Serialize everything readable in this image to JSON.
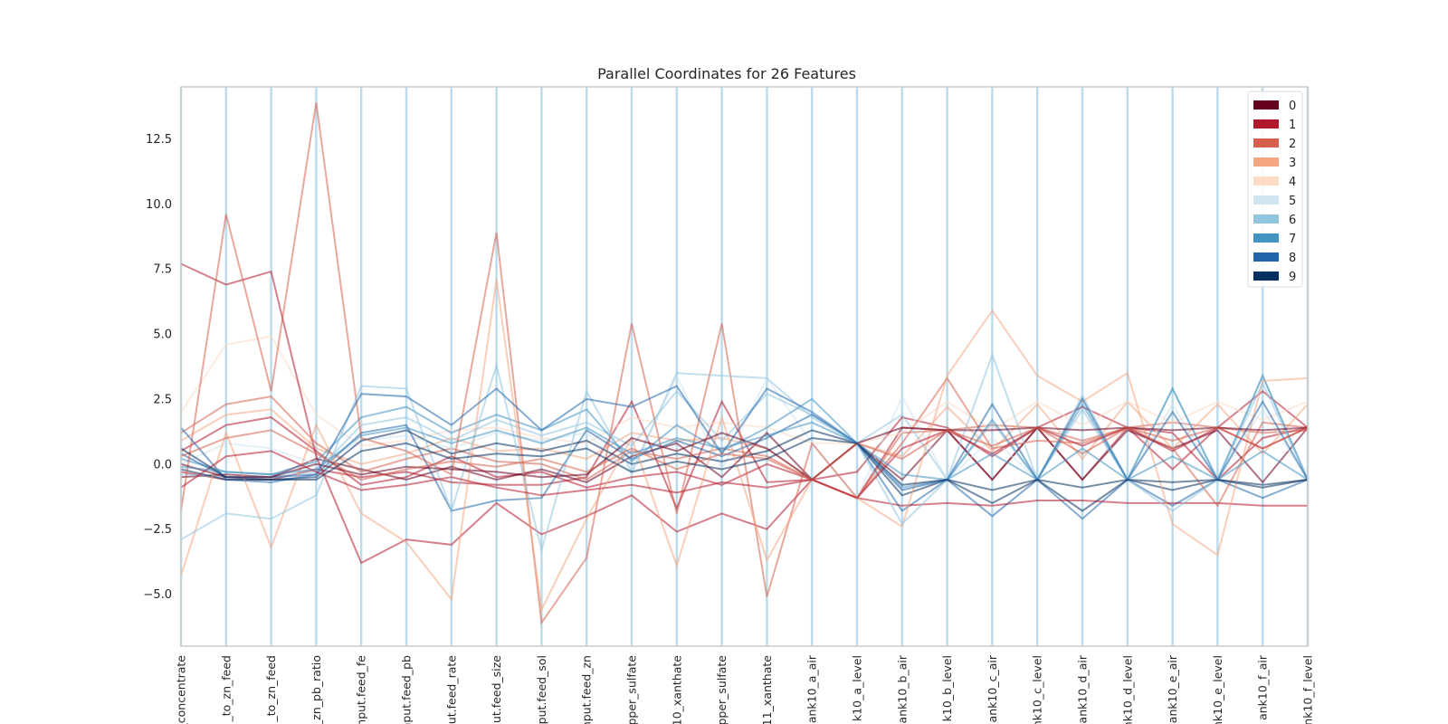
{
  "chart_data": {
    "type": "parallel-coordinates",
    "title": "Parallel Coordinates for 26 Features",
    "features": [
      "_concentrate",
      "_to_zn_feed",
      "_to_zn_feed",
      "_zn_pb_ratio",
      "nput.feed_fe",
      "nput.feed_pb",
      "ut.feed_rate",
      "ut.feed_size",
      "put.feed_sol",
      "nput.feed_zn",
      "pper_sulfate",
      "10_xanthate",
      "pper_sulfate",
      "11_xanthate",
      "ank10_a_air",
      "k10_a_level",
      "ank10_b_air",
      "k10_b_level",
      "ank10_c_air",
      "ank10_c_level",
      "ank10_d_air",
      "ank10_d_level",
      "ank10_e_air",
      "ank10_e_level",
      "ank10_f_air",
      "nk10_f_level"
    ],
    "ylim": [
      -7.0,
      14.5
    ],
    "yticks": [
      "−5.0",
      "−2.5",
      "0.0",
      "2.5",
      "5.0",
      "7.5",
      "10.0",
      "12.5"
    ],
    "ytick_values": [
      -5.0,
      -2.5,
      0.0,
      2.5,
      5.0,
      7.5,
      10.0,
      12.5
    ],
    "legend_position": "top-right",
    "classes": [
      {
        "label": "0",
        "color": "#67001f"
      },
      {
        "label": "1",
        "color": "#b2182b"
      },
      {
        "label": "2",
        "color": "#d6604d"
      },
      {
        "label": "3",
        "color": "#f4a582"
      },
      {
        "label": "4",
        "color": "#fddbc7"
      },
      {
        "label": "5",
        "color": "#d1e5f0"
      },
      {
        "label": "6",
        "color": "#92c5de"
      },
      {
        "label": "7",
        "color": "#4393c3"
      },
      {
        "label": "8",
        "color": "#2166ac"
      },
      {
        "label": "9",
        "color": "#053061"
      }
    ],
    "series": [
      {
        "class": 1,
        "values": [
          -0.3,
          -0.6,
          -0.6,
          -0.2,
          -0.5,
          -0.3,
          -0.7,
          -0.8,
          -0.8,
          -0.5,
          2.4,
          -1.7,
          2.4,
          -0.7,
          -0.6,
          -1.3,
          1.4,
          1.3,
          -0.6,
          1.4,
          -0.6,
          1.4,
          1.2,
          -0.6,
          1.0,
          1.4
        ]
      },
      {
        "class": 1,
        "values": [
          0.5,
          1.5,
          1.8,
          0.5,
          -0.8,
          -0.5,
          0.3,
          -0.5,
          -0.3,
          -0.9,
          -0.5,
          -0.3,
          -0.8,
          0.0,
          -0.6,
          -0.3,
          1.8,
          1.4,
          0.3,
          1.4,
          2.2,
          1.4,
          -0.2,
          1.4,
          2.8,
          1.4
        ]
      },
      {
        "class": 0,
        "values": [
          -0.5,
          -0.4,
          -0.5,
          0.2,
          -0.2,
          -0.6,
          -0.1,
          -0.6,
          -0.2,
          -0.7,
          0.3,
          0.8,
          -0.5,
          1.2,
          -0.6,
          0.8,
          -0.6,
          1.3,
          -0.6,
          1.4,
          -0.6,
          1.3,
          0.6,
          1.3,
          -0.7,
          1.4
        ]
      },
      {
        "class": 2,
        "values": [
          1.2,
          2.3,
          2.6,
          0.8,
          -0.3,
          0.2,
          0.6,
          0.1,
          0.0,
          -0.6,
          0.5,
          0.2,
          0.6,
          0.3,
          -0.6,
          -1.3,
          1.2,
          1.3,
          1.5,
          1.4,
          0.9,
          1.4,
          1.6,
          1.4,
          1.2,
          1.3
        ]
      },
      {
        "class": 3,
        "values": [
          0.9,
          1.9,
          2.1,
          0.6,
          0.0,
          0.4,
          1.0,
          0.5,
          0.6,
          0.2,
          1.2,
          0.9,
          1.0,
          0.6,
          -0.6,
          0.8,
          0.3,
          2.2,
          0.5,
          2.3,
          0.2,
          2.4,
          0.6,
          2.3,
          0.4,
          2.3
        ]
      },
      {
        "class": 4,
        "values": [
          2.0,
          4.6,
          4.9,
          1.9,
          0.7,
          0.9,
          1.3,
          1.4,
          1.0,
          0.8,
          1.8,
          1.4,
          1.6,
          1.4,
          0.8,
          0.8,
          1.2,
          2.4,
          1.3,
          2.4,
          1.5,
          2.4,
          1.6,
          2.4,
          1.7,
          2.4
        ]
      },
      {
        "class": 5,
        "values": [
          0.0,
          0.8,
          0.6,
          0.0,
          0.9,
          1.1,
          0.6,
          1.2,
          0.9,
          1.2,
          -0.4,
          3.4,
          -0.2,
          3.3,
          0.8,
          -1.3,
          2.6,
          -0.6,
          1.0,
          -0.6,
          2.7,
          -0.6,
          2.3,
          -0.6,
          2.1,
          -0.6
        ]
      },
      {
        "class": 6,
        "values": [
          -0.4,
          -0.5,
          -0.5,
          -0.3,
          1.5,
          1.8,
          0.9,
          1.7,
          1.1,
          1.6,
          0.7,
          2.8,
          0.9,
          2.7,
          1.9,
          0.8,
          1.9,
          -0.6,
          1.6,
          -0.6,
          2.1,
          -0.6,
          2.9,
          -0.6,
          3.4,
          -0.6
        ]
      },
      {
        "class": 7,
        "values": [
          0.2,
          -0.3,
          -0.4,
          0.1,
          1.8,
          2.2,
          1.2,
          1.9,
          1.3,
          2.1,
          0.1,
          1.5,
          0.5,
          1.4,
          2.5,
          0.8,
          -0.9,
          -0.6,
          1.7,
          -0.6,
          2.3,
          -0.6,
          2.9,
          -0.6,
          3.4,
          -0.6
        ]
      },
      {
        "class": 8,
        "values": [
          0.4,
          -0.5,
          -0.5,
          -0.4,
          1.2,
          1.5,
          -1.8,
          -1.4,
          -1.3,
          1.3,
          0.2,
          0.9,
          0.3,
          1.0,
          1.9,
          0.8,
          -1.8,
          -0.6,
          -2.0,
          -0.6,
          -2.1,
          -0.6,
          -1.6,
          -0.6,
          -1.3,
          -0.6
        ]
      },
      {
        "class": 9,
        "values": [
          -0.2,
          -0.6,
          -0.6,
          -0.5,
          0.9,
          1.3,
          0.4,
          0.8,
          0.5,
          0.9,
          0.0,
          0.4,
          0.1,
          0.5,
          1.3,
          0.8,
          -1.2,
          -0.6,
          -1.5,
          -0.6,
          -1.8,
          -0.6,
          -1.0,
          -0.6,
          -0.8,
          -0.6
        ]
      },
      {
        "class": 1,
        "values": [
          7.7,
          6.9,
          7.4,
          0.3,
          -3.8,
          -2.9,
          -3.1,
          -1.5,
          -2.7,
          -2.0,
          -1.2,
          -2.6,
          -1.9,
          -2.5,
          -0.6,
          -1.3,
          -1.6,
          -1.5,
          -1.6,
          -1.4,
          -1.4,
          -1.5,
          -1.5,
          -1.5,
          -1.6,
          -1.6
        ]
      },
      {
        "class": 2,
        "values": [
          -1.8,
          9.6,
          2.8,
          13.9,
          1.0,
          0.5,
          -0.4,
          8.9,
          -6.1,
          -3.6,
          5.4,
          -1.9,
          5.4,
          -5.1,
          0.8,
          -1.3,
          0.8,
          3.3,
          0.6,
          0.9,
          0.8,
          1.4,
          0.6,
          -1.6,
          1.6,
          1.4
        ]
      },
      {
        "class": 3,
        "values": [
          -4.3,
          1.2,
          -3.2,
          1.5,
          -1.9,
          -3.0,
          -5.2,
          7.1,
          -5.6,
          -2.1,
          1.0,
          -3.9,
          1.8,
          -3.7,
          -0.6,
          -1.3,
          -2.4,
          3.4,
          5.9,
          3.4,
          2.4,
          3.5,
          -2.3,
          -3.5,
          3.2,
          3.3
        ]
      },
      {
        "class": 6,
        "values": [
          -2.9,
          -1.9,
          -2.1,
          -1.2,
          3.0,
          2.9,
          -1.8,
          3.8,
          -3.3,
          2.8,
          -0.3,
          3.5,
          3.4,
          3.3,
          1.8,
          0.8,
          -2.3,
          -0.6,
          4.2,
          -0.6,
          2.6,
          -0.6,
          -1.8,
          -0.6,
          3.1,
          -0.6
        ]
      },
      {
        "class": 8,
        "values": [
          1.4,
          -0.6,
          -0.7,
          -0.4,
          2.7,
          2.6,
          1.5,
          2.9,
          1.3,
          2.5,
          2.2,
          3.0,
          0.4,
          2.9,
          2.0,
          0.8,
          -1.0,
          -0.6,
          2.3,
          -0.6,
          2.5,
          -0.6,
          2.0,
          -0.6,
          2.4,
          -0.6
        ]
      },
      {
        "class": 0,
        "values": [
          0.0,
          -0.5,
          -0.5,
          0.0,
          -0.4,
          -0.1,
          -0.2,
          -0.3,
          -0.5,
          -0.4,
          1.0,
          0.5,
          1.2,
          0.6,
          -0.6,
          0.8,
          1.4,
          1.3,
          1.3,
          1.4,
          1.3,
          1.4,
          1.3,
          1.4,
          1.3,
          1.4
        ]
      },
      {
        "class": 1,
        "values": [
          -0.9,
          0.3,
          0.5,
          -0.3,
          -1.0,
          -0.8,
          -0.5,
          -0.9,
          -1.2,
          -1.0,
          -0.8,
          -1.1,
          -0.7,
          -0.9,
          -0.6,
          -1.3,
          0.6,
          1.3,
          0.4,
          1.4,
          0.7,
          1.4,
          0.5,
          1.4,
          0.6,
          1.4
        ]
      },
      {
        "class": 2,
        "values": [
          0.3,
          1.0,
          1.3,
          0.4,
          -0.6,
          -0.2,
          0.1,
          -0.1,
          0.2,
          -0.3,
          0.6,
          -0.2,
          0.4,
          0.2,
          -0.6,
          0.8,
          0.2,
          1.3,
          0.7,
          1.4,
          0.4,
          1.4,
          0.9,
          1.4,
          0.6,
          1.4
        ]
      },
      {
        "class": 7,
        "values": [
          -0.1,
          -0.3,
          -0.4,
          -0.2,
          1.1,
          1.4,
          0.8,
          1.3,
          0.8,
          1.4,
          0.4,
          1.0,
          0.6,
          1.1,
          1.6,
          0.8,
          -0.4,
          -0.6,
          0.4,
          -0.6,
          0.6,
          -0.6,
          0.3,
          -0.6,
          0.5,
          -0.6
        ]
      },
      {
        "class": 9,
        "values": [
          0.6,
          -0.5,
          -0.6,
          -0.6,
          0.5,
          0.8,
          0.2,
          0.4,
          0.3,
          0.6,
          -0.3,
          0.1,
          -0.2,
          0.2,
          1.0,
          0.8,
          -0.8,
          -0.6,
          -1.0,
          -0.6,
          -0.9,
          -0.6,
          -0.7,
          -0.6,
          -0.9,
          -0.6
        ]
      }
    ]
  }
}
